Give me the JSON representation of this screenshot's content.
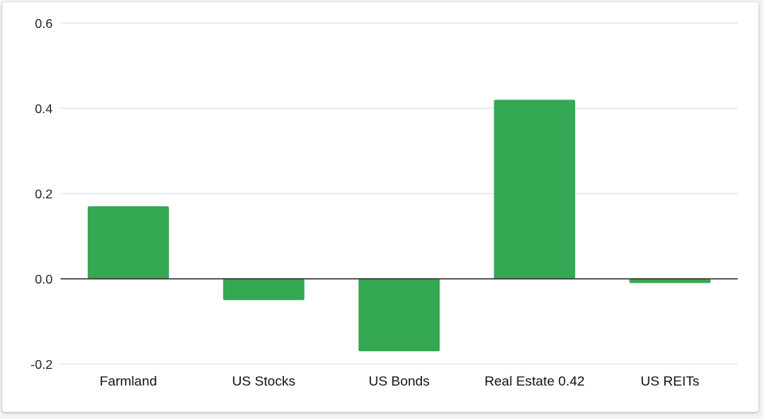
{
  "chart_data": {
    "type": "bar",
    "categories": [
      "Farmland",
      "US Stocks",
      "US Bonds",
      "Real Estate",
      "US REITs"
    ],
    "category_labels": [
      "Farmland",
      "US Stocks",
      "US Bonds",
      "Real Estate  0.42",
      "US REITs"
    ],
    "values": [
      0.17,
      -0.05,
      -0.17,
      0.42,
      -0.01
    ],
    "ylim": [
      -0.2,
      0.6
    ],
    "yticks": [
      -0.2,
      0.0,
      0.2,
      0.4,
      0.6
    ],
    "ytick_labels": [
      "-0.2",
      "0.0",
      "0.2",
      "0.4",
      "0.6"
    ],
    "title": "",
    "xlabel": "",
    "ylabel": "",
    "grid": true,
    "colors": {
      "bar": "#34a853",
      "grid": "#d9d9d9",
      "zero_line": "#333333"
    }
  }
}
